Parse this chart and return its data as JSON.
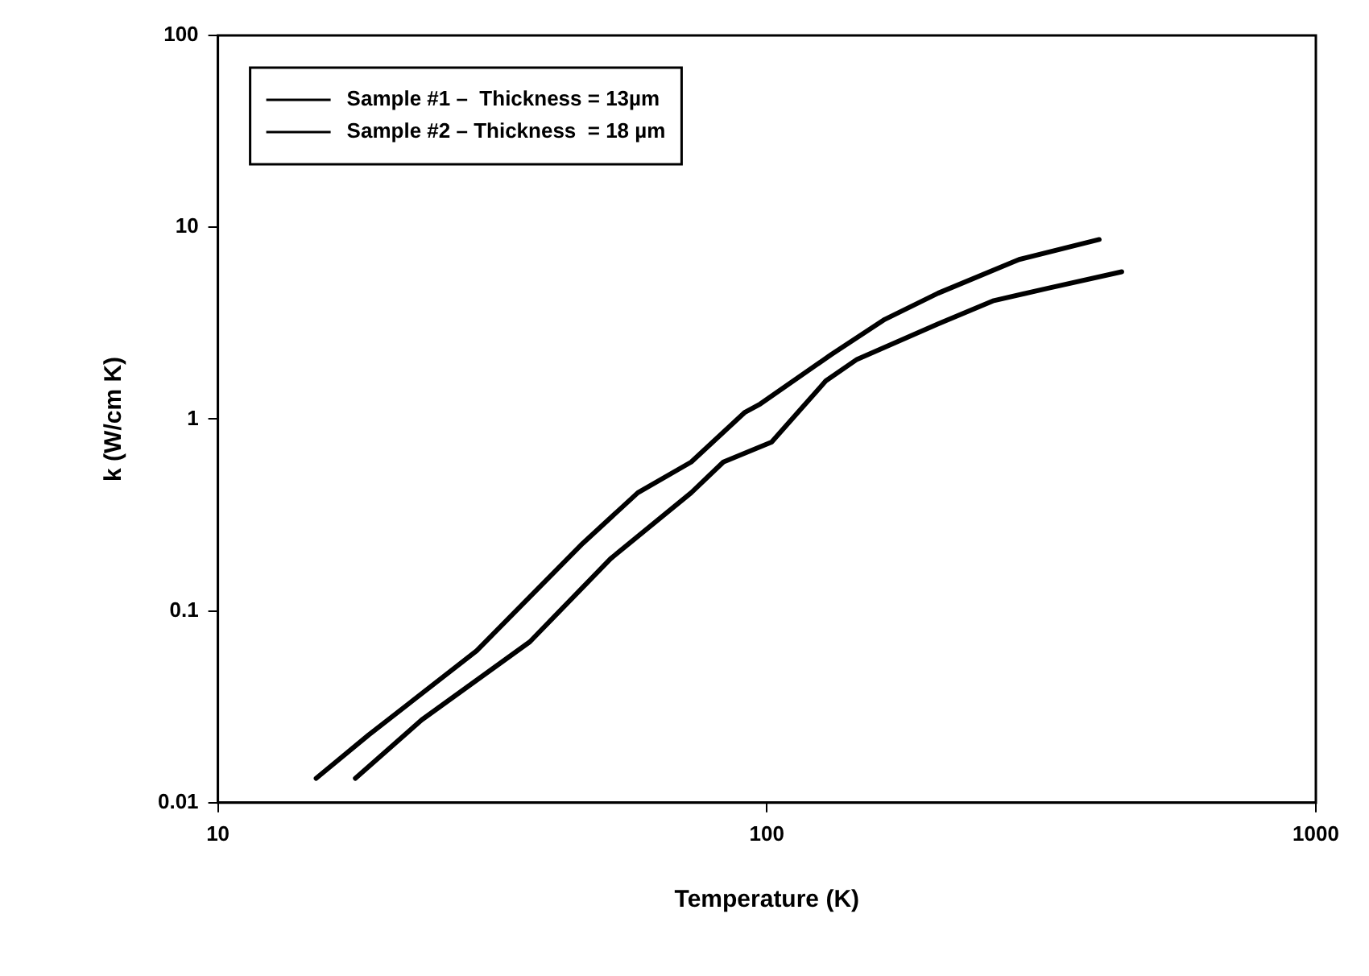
{
  "chart_data": {
    "type": "line",
    "xlabel": "Temperature (K)",
    "ylabel": "k (W/cm K)",
    "log": "xy",
    "grid": false,
    "legend": "top left",
    "marker": "none",
    "line_style": "solid",
    "xlim": [
      10,
      1000
    ],
    "xticks": [
      10,
      100,
      1000
    ],
    "ylim": [
      0.01,
      100
    ],
    "yticks": [
      0.01,
      0.1,
      1,
      10,
      100
    ],
    "series": [
      {
        "name": "Sample #1 –  Thickness = 13µm",
        "color": "#000000",
        "x": [
          15.1,
          18.8,
          29.6,
          46.2,
          58.2,
          72.8,
          91.0,
          97.3,
          131,
          164,
          205,
          288,
          403
        ],
        "values": [
          0.0134,
          0.0225,
          0.062,
          0.225,
          0.413,
          0.597,
          1.08,
          1.2,
          2.17,
          3.31,
          4.53,
          6.79,
          8.63
        ]
      },
      {
        "name": "Sample #2 – Thickness  = 18 µm",
        "color": "#000000",
        "x": [
          17.8,
          23.5,
          37.0,
          51.9,
          72.8,
          83.3,
          102,
          128,
          146,
          205,
          258,
          323,
          443
        ],
        "values": [
          0.0134,
          0.027,
          0.069,
          0.187,
          0.413,
          0.597,
          0.759,
          1.58,
          2.05,
          3.13,
          4.13,
          4.79,
          5.86
        ]
      }
    ]
  }
}
